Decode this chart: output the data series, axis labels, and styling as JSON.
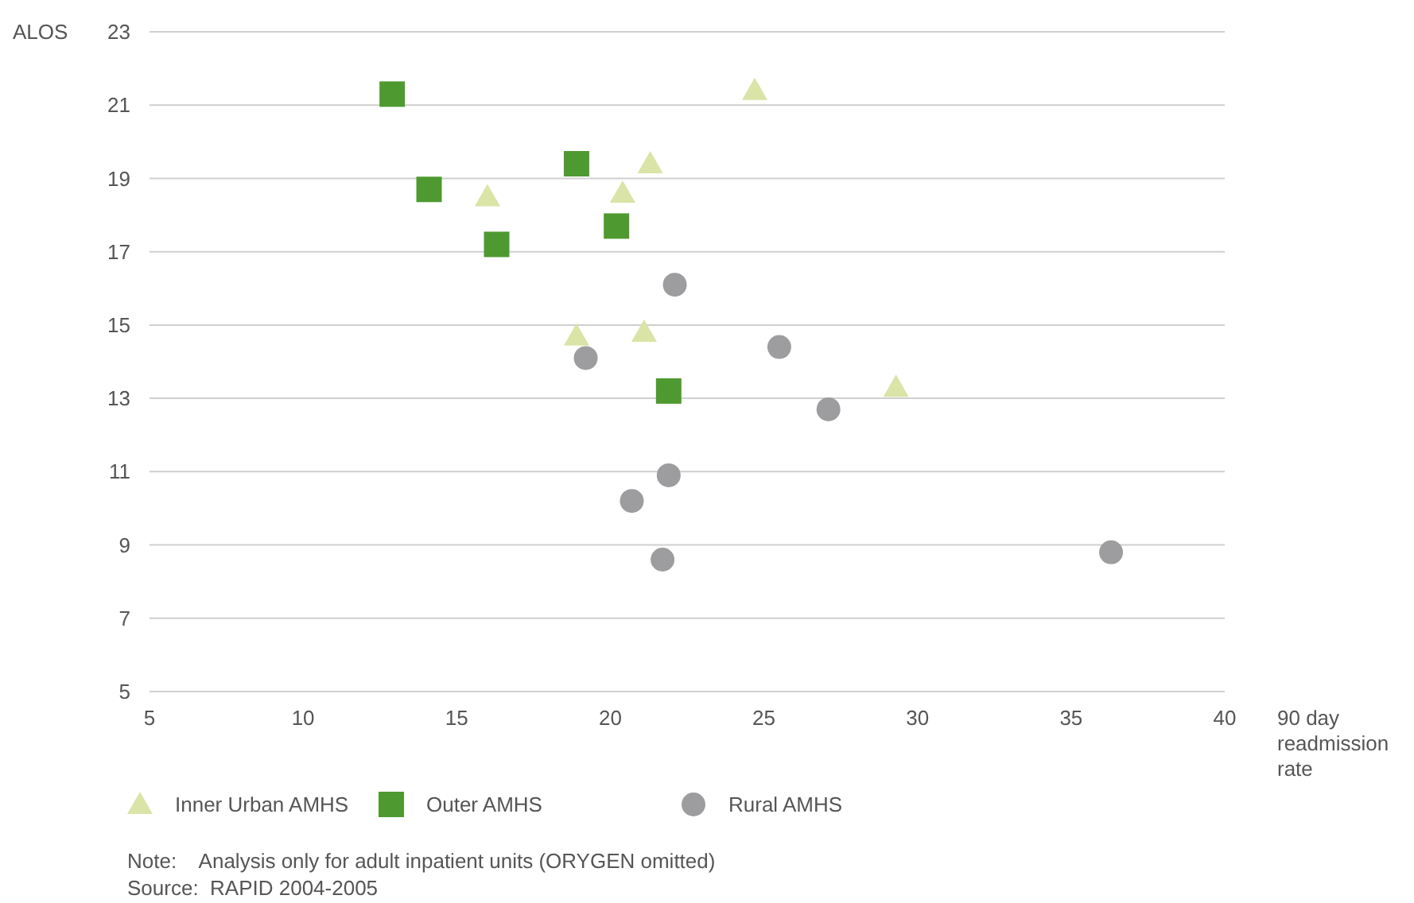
{
  "chart_data": {
    "type": "scatter",
    "xlabel": "90 day readmission rate",
    "ylabel": "ALOS",
    "xlim": [
      5,
      40
    ],
    "xticks": [
      5,
      10,
      15,
      20,
      25,
      30,
      35,
      40
    ],
    "ylim": [
      5,
      23
    ],
    "yticks": [
      5,
      7,
      9,
      11,
      13,
      15,
      17,
      19,
      21,
      23
    ],
    "grid": "y",
    "legend": "bottom",
    "series": [
      {
        "name": "Inner Urban AMHS",
        "color": "#d9e4a6",
        "marker": "triangle",
        "x": [
          24.7,
          21.3,
          16.0,
          20.4,
          18.9,
          21.1,
          29.3
        ],
        "values": [
          21.4,
          19.4,
          18.5,
          18.6,
          14.7,
          14.8,
          13.3
        ]
      },
      {
        "name": "Outer AMHS",
        "color": "#4e9a30",
        "marker": "square",
        "x": [
          12.9,
          14.1,
          18.9,
          16.3,
          20.2,
          21.9
        ],
        "values": [
          21.3,
          18.7,
          19.4,
          17.2,
          17.7,
          13.2
        ]
      },
      {
        "name": "Rural AMHS",
        "color": "#9d9d9f",
        "marker": "circle",
        "x": [
          22.1,
          19.2,
          25.5,
          27.1,
          21.9,
          20.7,
          21.7,
          36.3
        ],
        "values": [
          16.1,
          14.1,
          14.4,
          12.7,
          10.9,
          10.2,
          8.6,
          8.8
        ]
      }
    ],
    "annotations": [
      "Note:    Analysis only for adult inpatient units (ORYGEN omitted)",
      "Source:  RAPID 2004-2005"
    ]
  }
}
